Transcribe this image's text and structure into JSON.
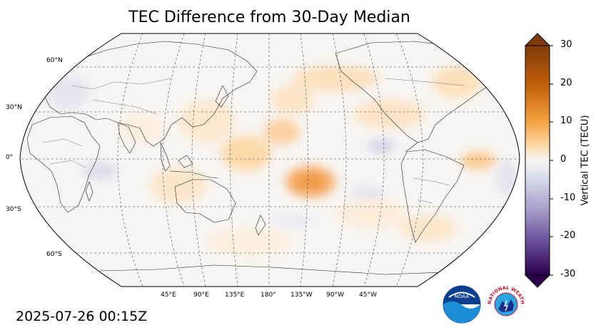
{
  "title": "TEC Difference from 30-Day Median",
  "timestamp": "2025-07-26 00:15Z",
  "map": {
    "projection": "robinson",
    "central_longitude": 180,
    "lat_labels": [
      "60°N",
      "30°N",
      "0°",
      "30°S",
      "60°S"
    ],
    "lon_labels": [
      "45°E",
      "90°E",
      "135°E",
      "180°",
      "135°W",
      "90°W",
      "45°W"
    ],
    "gridlines": "dashed",
    "coastlines": true,
    "borders": true
  },
  "colorbar": {
    "label": "Vertical TEC (TECU)",
    "ticks": [
      "30",
      "20",
      "10",
      "0",
      "-10",
      "-20",
      "-30"
    ],
    "range": [
      -30,
      30
    ],
    "colormap": "purple-white-orange",
    "extend": "both"
  },
  "colors": {
    "positive_strong": "#7f3b08",
    "positive": "#e08214",
    "neutral": "#f7f7f7",
    "negative": "#8073ac",
    "negative_strong": "#2d004b"
  },
  "logos": {
    "noaa": {
      "text": "NOAA",
      "icon": "noaa-logo"
    },
    "nws": {
      "text": "NATIONAL WEATHER SERVICE",
      "icon": "nws-logo"
    }
  }
}
